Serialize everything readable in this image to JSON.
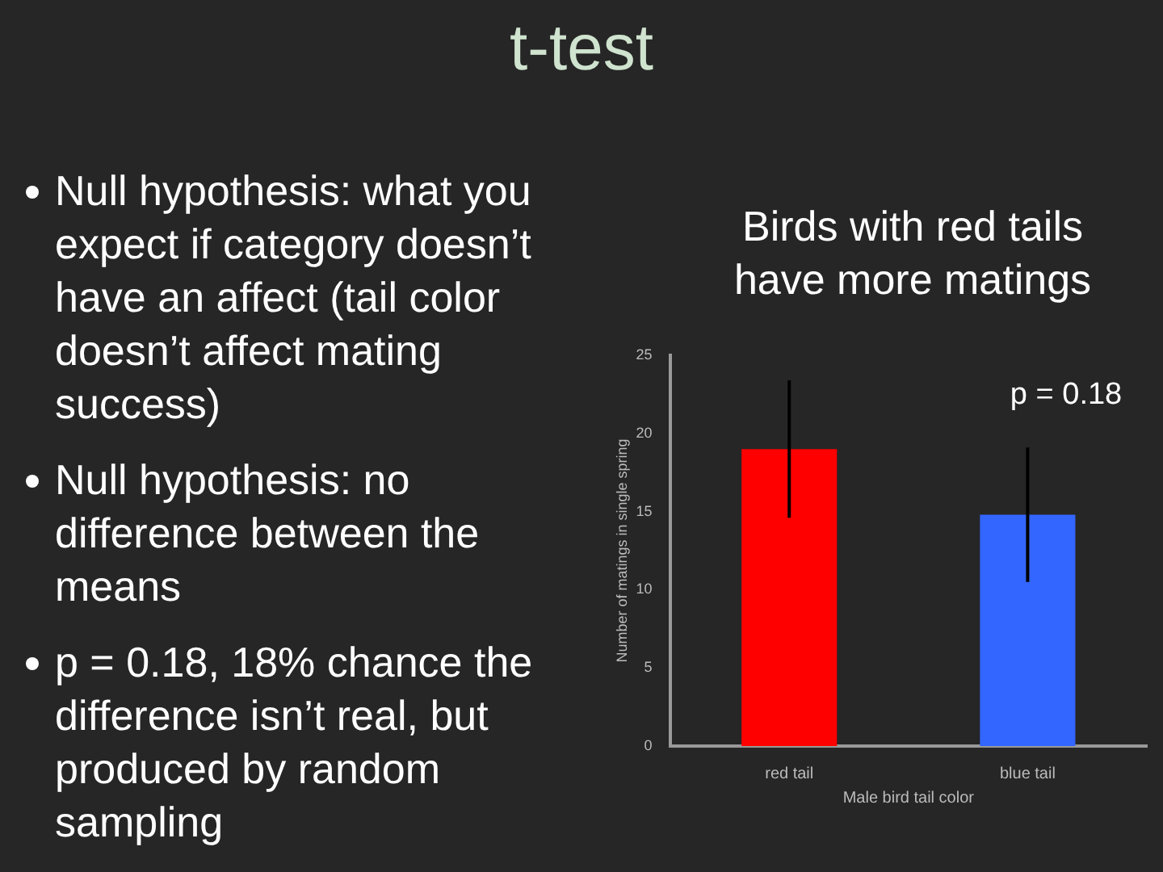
{
  "chart_data": {
    "type": "bar",
    "title": "t-test",
    "subtitle": "Birds with red tails have more matings",
    "categories": [
      "red tail",
      "blue tail"
    ],
    "values": [
      19,
      14.8
    ],
    "colors": [
      "#ff0000",
      "#3366ff"
    ],
    "errors": [
      4.4,
      4.3
    ],
    "xlabel": "Male bird tail color",
    "ylabel": "Number of matings in single spring",
    "ylim": [
      0,
      25
    ],
    "yticks": [
      0,
      5,
      10,
      15,
      20,
      25
    ],
    "grid": false,
    "legend": false,
    "annotations": [
      "Null hypothesis: what you expect if category doesn’t have an affect (tail color doesn’t affect mating success)",
      "Null hypothesis: no difference between the means",
      "p = 0.18, 18% chance the difference isn’t real, but produced by random sampling",
      "p = 0.18"
    ]
  }
}
